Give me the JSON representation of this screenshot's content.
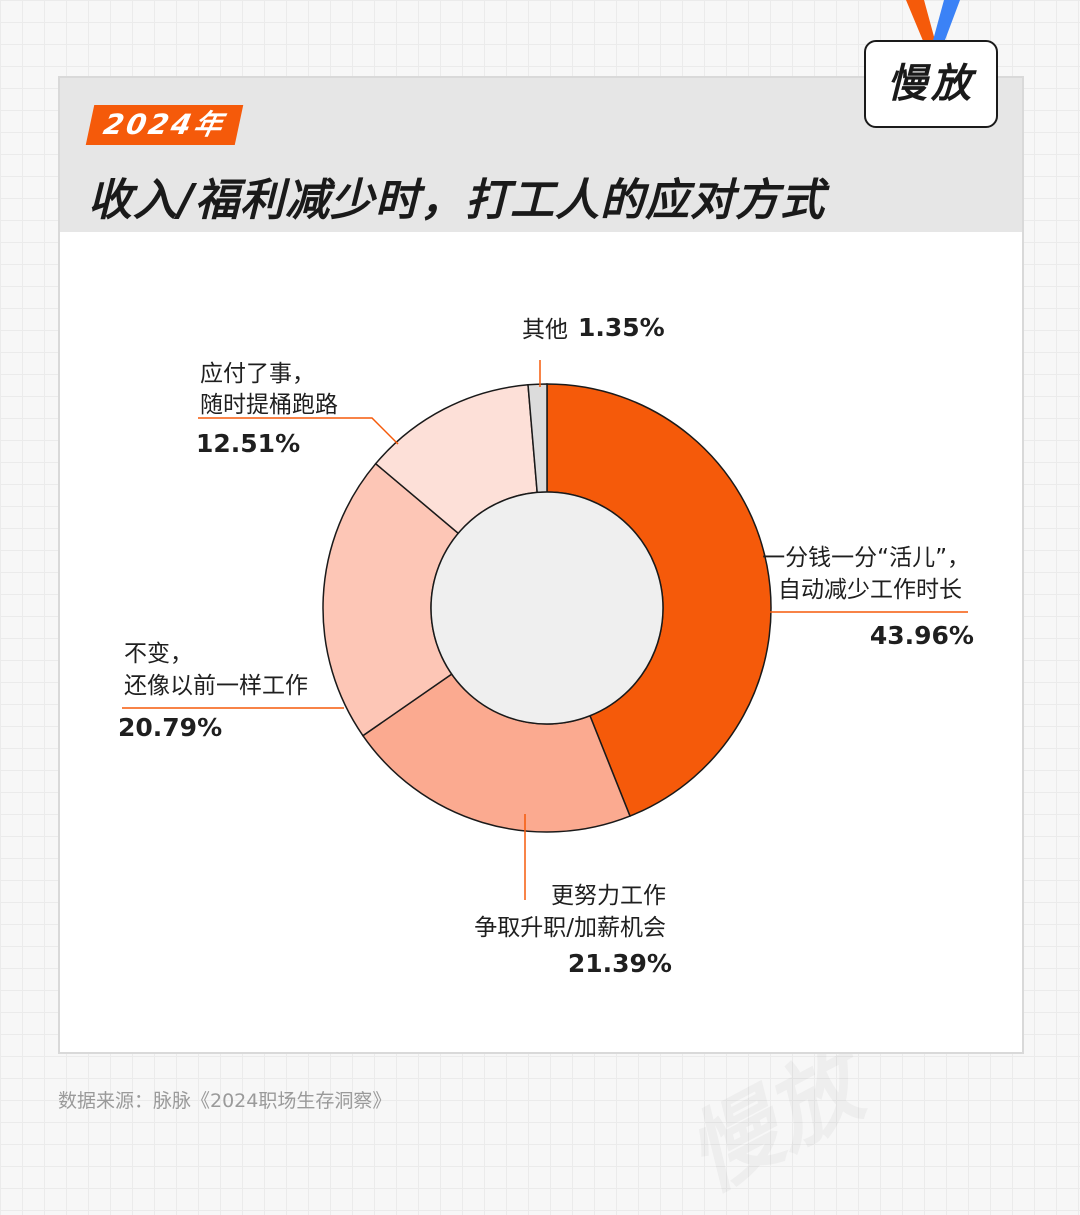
{
  "header": {
    "year_badge": "2024年",
    "title": "收入/福利减少时，打工人的应对方式"
  },
  "logo": {
    "text": "慢放"
  },
  "watermark": "慢放",
  "source": "数据来源：脉脉《2024职场生存洞察》",
  "colors": {
    "accent": "#f55a0a",
    "header_bg": "#e6e6e6",
    "hole": "#efefef"
  },
  "chart_data": {
    "type": "pie",
    "variant": "donut",
    "slices": [
      {
        "label_lines": [
          "一分钱一分“活儿”，",
          "自动减少工作时长"
        ],
        "value": 43.96,
        "value_label": "43.96%",
        "color": "#f55a0a"
      },
      {
        "label_lines": [
          "更努力工作",
          "争取升职/加薪机会"
        ],
        "value": 21.39,
        "value_label": "21.39%",
        "color": "#fbaa90"
      },
      {
        "label_lines": [
          "不变，",
          "还像以前一样工作"
        ],
        "value": 20.79,
        "value_label": "20.79%",
        "color": "#fdc6b6"
      },
      {
        "label_lines": [
          "应付了事，",
          "随时提桶跑路"
        ],
        "value": 12.51,
        "value_label": "12.51%",
        "color": "#fde0d8"
      },
      {
        "label_lines": [
          "其他"
        ],
        "value": 1.35,
        "value_label": "1.35%",
        "color": "#dcdcdc"
      }
    ]
  }
}
